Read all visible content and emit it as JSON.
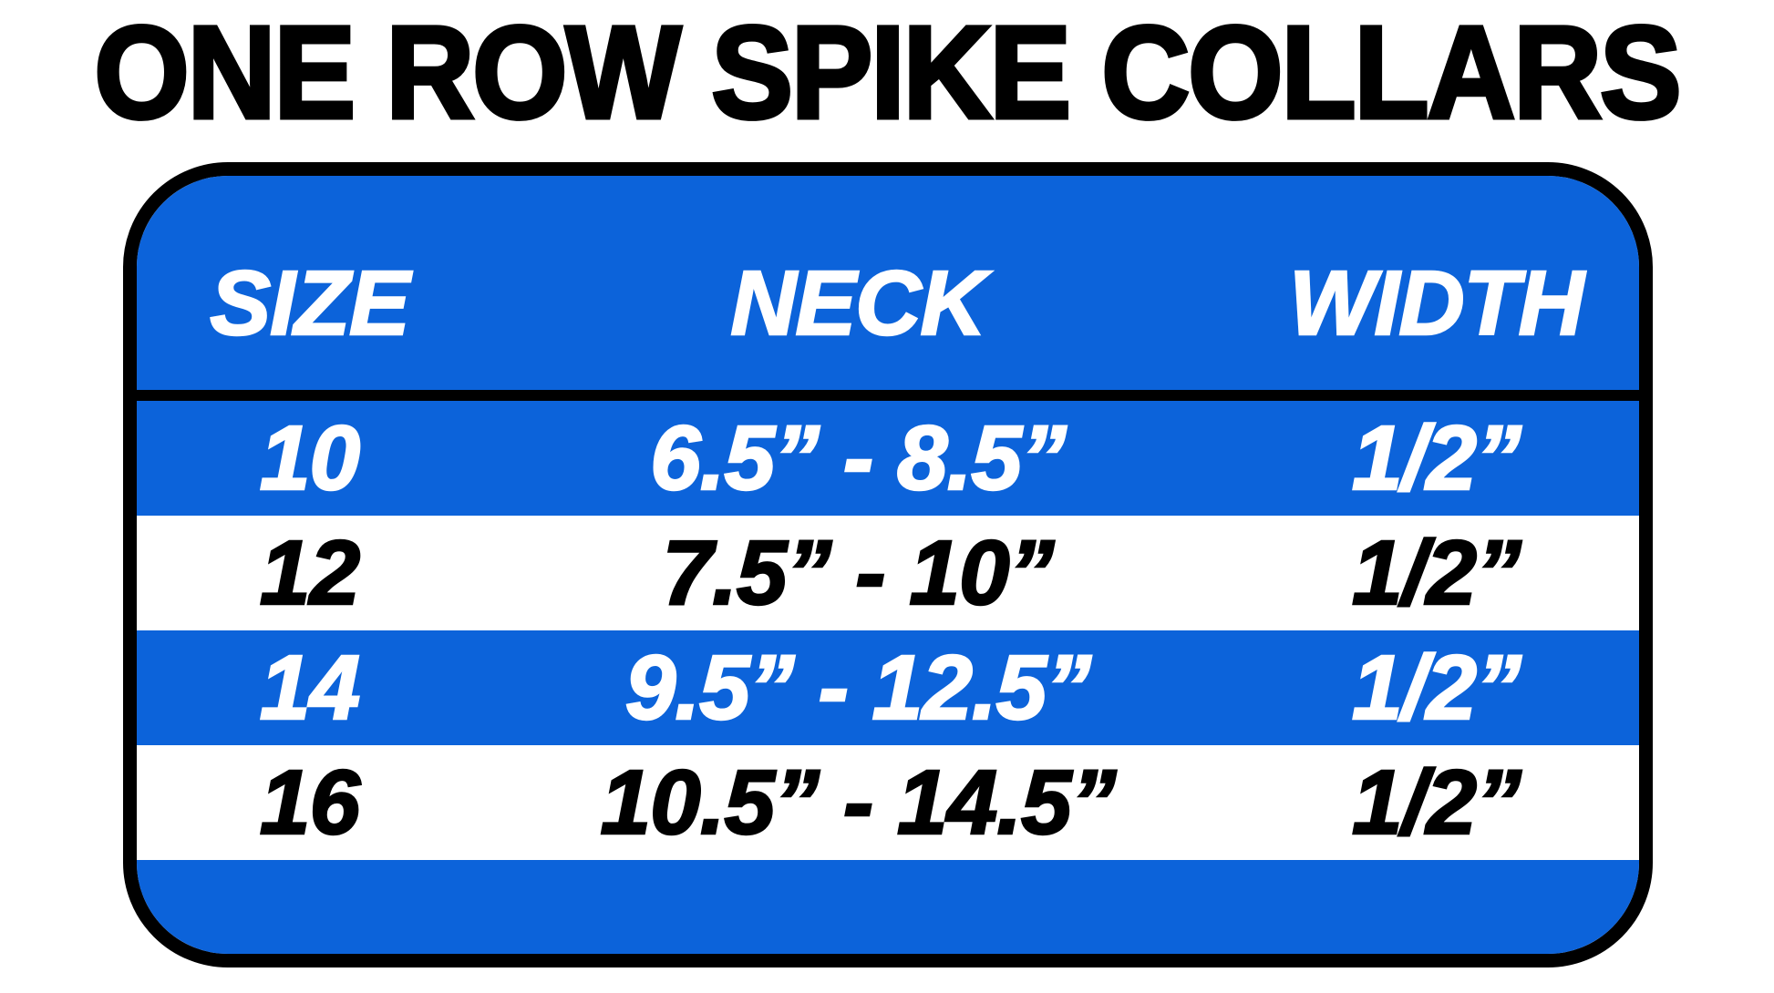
{
  "title": "ONE ROW SPIKE COLLARS",
  "chart_data": {
    "type": "table",
    "title": "ONE ROW SPIKE COLLARS",
    "columns": [
      "SIZE",
      "NECK",
      "WIDTH"
    ],
    "rows": [
      [
        "10",
        "6.5” - 8.5”",
        "1/2”"
      ],
      [
        "12",
        "7.5” - 10”",
        "1/2”"
      ],
      [
        "14",
        "9.5” - 12.5”",
        "1/2”"
      ],
      [
        "16",
        "10.5” - 14.5”",
        "1/2”"
      ]
    ],
    "row_striping": [
      "blue",
      "white",
      "blue",
      "white"
    ]
  },
  "colors": {
    "row_blue": "#0C63DA",
    "border_black": "#000000",
    "text_on_blue": "#FFFFFF",
    "text_on_white": "#000000",
    "page_background": "#FFFFFF"
  }
}
